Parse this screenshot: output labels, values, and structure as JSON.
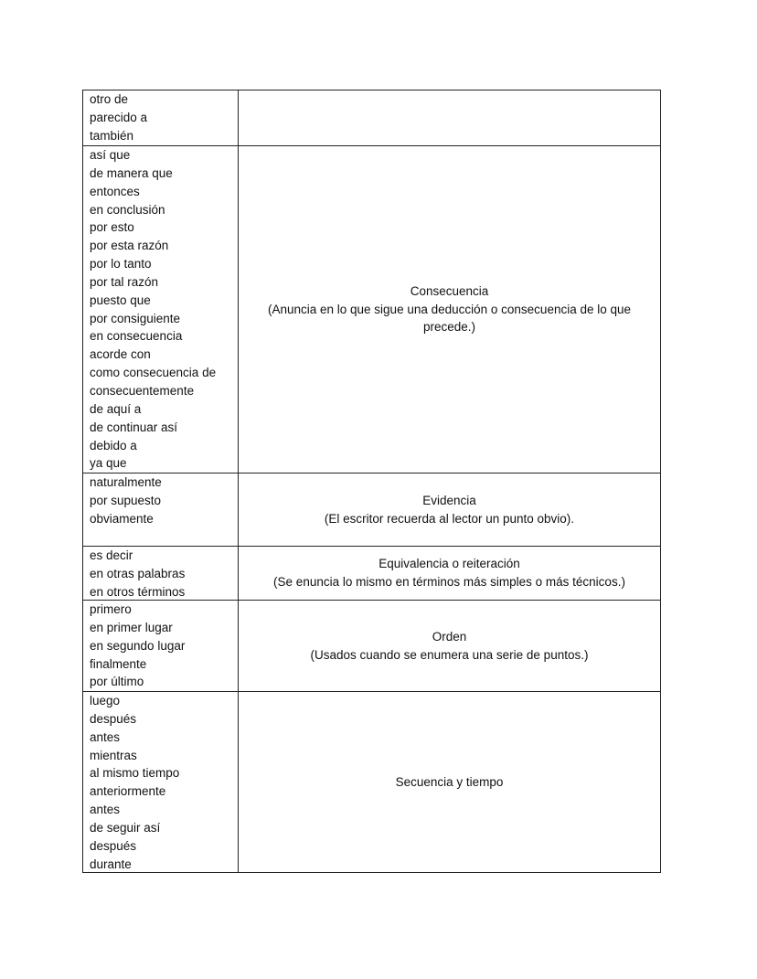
{
  "rows": [
    {
      "terms": [
        "otro de",
        "parecido a",
        "también"
      ],
      "title": "",
      "description": ""
    },
    {
      "terms": [
        "así que",
        "de manera que",
        "entonces",
        "en conclusión",
        "por esto",
        "por esta razón",
        "por lo tanto",
        "por tal razón",
        "puesto que",
        "por consiguiente",
        "en consecuencia",
        "acorde con",
        "como consecuencia de",
        "consecuentemente",
        "de aquí a",
        "de continuar así",
        "debido a",
        "ya que"
      ],
      "title": "Consecuencia",
      "description": "(Anuncia en lo que sigue una deducción o consecuencia de lo que precede.)"
    },
    {
      "terms": [
        "naturalmente",
        "por supuesto",
        "obviamente"
      ],
      "title": "Evidencia",
      "description": "(El escritor recuerda al lector un punto obvio)."
    },
    {
      "terms": [
        "es decir",
        "en otras palabras",
        "en otros términos"
      ],
      "title": "Equivalencia o reiteración",
      "description": "(Se enuncia lo mismo en términos más simples o más técnicos.)"
    },
    {
      "terms": [
        "primero",
        "en primer lugar",
        "en segundo lugar",
        "finalmente",
        "por último"
      ],
      "title": "Orden",
      "description": "(Usados cuando se enumera una serie de puntos.)"
    },
    {
      "terms": [
        "luego",
        "después",
        "antes",
        "mientras",
        "al mismo tiempo",
        "anteriormente",
        "antes",
        "de seguir así",
        "después",
        "durante"
      ],
      "title": "Secuencia y tiempo",
      "description": ""
    }
  ]
}
